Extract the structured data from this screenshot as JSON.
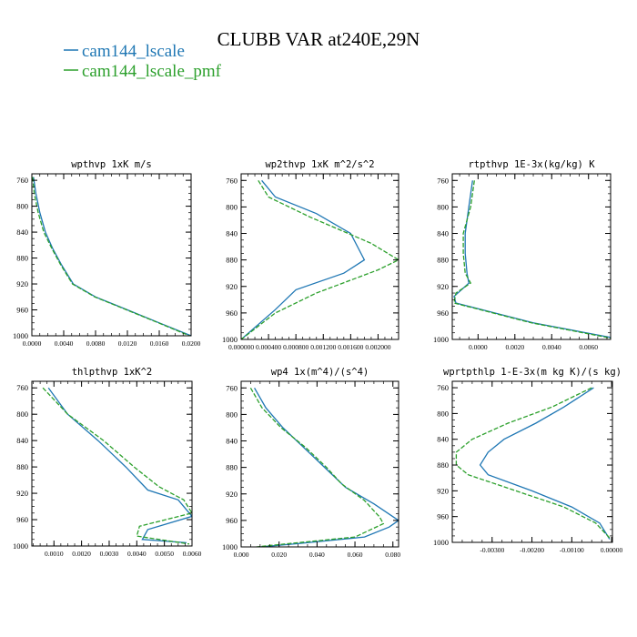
{
  "title": "CLUBB VAR at240E,29N",
  "legend": [
    {
      "name": "cam144_lscale",
      "color": "#1f77b4"
    },
    {
      "name": "cam144_lscale_pmf",
      "color": "#2ca02c"
    }
  ],
  "chart_data": [
    {
      "type": "line",
      "title": "wpthvp  1xK m/s",
      "xlim": [
        0,
        0.02
      ],
      "ylim": [
        1000,
        750
      ],
      "xticks": [
        "0.0000",
        "0.0040",
        "0.0080",
        "0.0120",
        "0.0160",
        "0.0200"
      ],
      "xtick_values": [
        0,
        0.004,
        0.008,
        0.012,
        0.016,
        0.02
      ],
      "yticks": [
        "760",
        "800",
        "840",
        "880",
        "920",
        "960",
        "1000"
      ],
      "ytick_values": [
        760,
        800,
        840,
        880,
        920,
        960,
        1000
      ],
      "series": [
        {
          "name": "cam144_lscale",
          "x": [
            0.0002,
            0.0005,
            0.001,
            0.0017,
            0.0026,
            0.0037,
            0.0052,
            0.008,
            0.012,
            0.016,
            0.02
          ],
          "y": [
            755,
            780,
            810,
            840,
            865,
            890,
            920,
            940,
            960,
            980,
            1000
          ]
        },
        {
          "name": "cam144_lscale_pmf",
          "x": [
            0.0001,
            0.0003,
            0.0008,
            0.0015,
            0.0025,
            0.0036,
            0.0051,
            0.0079,
            0.0119,
            0.0159,
            0.0198
          ],
          "y": [
            755,
            780,
            810,
            840,
            865,
            890,
            920,
            940,
            960,
            980,
            1000
          ]
        }
      ]
    },
    {
      "type": "line",
      "title": "wp2thvp  1xK m^2/s^2",
      "xlim": [
        0,
        0.0023
      ],
      "ylim": [
        1000,
        750
      ],
      "xticks": [
        "0.0000",
        "0.0004",
        "0.0008",
        "0.0012",
        "0.0016",
        "0.0020"
      ],
      "xtick_labels_drawn": [
        "0.000000",
        "0.000400",
        "0.000800",
        "0.001200",
        "0.001600",
        "0.002000"
      ],
      "xtick_values": [
        0,
        0.0004,
        0.0008,
        0.0012,
        0.0016,
        0.002
      ],
      "yticks": [
        "760",
        "800",
        "840",
        "880",
        "920",
        "960",
        "1000"
      ],
      "ytick_values": [
        760,
        800,
        840,
        880,
        920,
        960,
        1000
      ],
      "series": [
        {
          "name": "cam144_lscale",
          "x": [
            0.0003,
            0.0005,
            0.0011,
            0.0016,
            0.0018,
            0.0015,
            0.0008,
            0.0005,
            0.0
          ],
          "y": [
            760,
            785,
            810,
            840,
            880,
            900,
            925,
            955,
            1000
          ]
        },
        {
          "name": "cam144_lscale_pmf",
          "x": [
            0.00025,
            0.0004,
            0.001,
            0.0019,
            0.0023,
            0.002,
            0.0011,
            0.0005,
            0.0
          ],
          "y": [
            760,
            785,
            815,
            855,
            880,
            895,
            930,
            960,
            1000
          ]
        }
      ]
    },
    {
      "type": "line",
      "title": "rtpthvp  1E-3x(kg/kg) K",
      "xlim": [
        -0.0014,
        0.0072
      ],
      "ylim": [
        1000,
        750
      ],
      "xticks": [
        "0.0000",
        "0.0020",
        "0.0040",
        "0.0060"
      ],
      "xtick_values": [
        0,
        0.002,
        0.004,
        0.006
      ],
      "yticks": [
        "760",
        "800",
        "840",
        "880",
        "920",
        "960",
        "1000"
      ],
      "ytick_values": [
        760,
        800,
        840,
        880,
        920,
        960,
        1000
      ],
      "series": [
        {
          "name": "cam144_lscale",
          "x": [
            -0.0003,
            -0.0005,
            -0.0007,
            -0.0007,
            -0.0006,
            -0.0005,
            -0.0013,
            -0.0012,
            0.0002,
            0.003,
            0.0072
          ],
          "y": [
            760,
            800,
            840,
            870,
            900,
            915,
            935,
            945,
            955,
            975,
            997
          ]
        },
        {
          "name": "cam144_lscale_pmf",
          "x": [
            -0.0002,
            -0.0004,
            -0.0008,
            -0.0008,
            -0.0007,
            -0.0004,
            -0.0012,
            -0.0013,
            0.0001,
            0.0029,
            0.0072
          ],
          "y": [
            760,
            800,
            840,
            870,
            900,
            915,
            930,
            945,
            955,
            975,
            998
          ]
        }
      ]
    },
    {
      "type": "line",
      "title": "thlpthvp  1xK^2",
      "xlim": [
        0.0002,
        0.006
      ],
      "ylim": [
        1000,
        750
      ],
      "xticks": [
        "0.0010",
        "0.0020",
        "0.0030",
        "0.0040",
        "0.0050",
        "0.0060"
      ],
      "xtick_values": [
        0.001,
        0.002,
        0.003,
        0.004,
        0.005,
        0.006
      ],
      "yticks": [
        "760",
        "800",
        "840",
        "880",
        "920",
        "960",
        "1000"
      ],
      "ytick_values": [
        760,
        800,
        840,
        880,
        920,
        960,
        1000
      ],
      "series": [
        {
          "name": "cam144_lscale",
          "x": [
            0.0008,
            0.0015,
            0.0026,
            0.0036,
            0.0044,
            0.0055,
            0.006,
            0.0044,
            0.0042,
            0.0058
          ],
          "y": [
            760,
            800,
            840,
            880,
            915,
            930,
            955,
            975,
            990,
            995
          ]
        },
        {
          "name": "cam144_lscale_pmf",
          "x": [
            0.0006,
            0.0015,
            0.0028,
            0.0039,
            0.0048,
            0.0057,
            0.006,
            0.0041,
            0.004,
            0.0059
          ],
          "y": [
            760,
            800,
            840,
            880,
            910,
            930,
            950,
            970,
            985,
            997
          ]
        }
      ]
    },
    {
      "type": "line",
      "title": "wp4  1x(m^4)/(s^4)",
      "xlim": [
        0,
        0.083
      ],
      "ylim": [
        1000,
        750
      ],
      "xticks": [
        "0.000",
        "0.020",
        "0.040",
        "0.060",
        "0.080"
      ],
      "xtick_values": [
        0,
        0.02,
        0.04,
        0.06,
        0.08
      ],
      "yticks": [
        "760",
        "800",
        "840",
        "880",
        "920",
        "960",
        "1000"
      ],
      "ytick_values": [
        760,
        800,
        840,
        880,
        920,
        960,
        1000
      ],
      "series": [
        {
          "name": "cam144_lscale",
          "x": [
            0.007,
            0.013,
            0.022,
            0.033,
            0.044,
            0.055,
            0.07,
            0.083,
            0.078,
            0.065,
            0.03,
            0.01
          ],
          "y": [
            760,
            790,
            820,
            850,
            880,
            910,
            935,
            960,
            970,
            985,
            995,
            1000
          ]
        },
        {
          "name": "cam144_lscale_pmf",
          "x": [
            0.005,
            0.011,
            0.021,
            0.034,
            0.045,
            0.053,
            0.065,
            0.073,
            0.075,
            0.06,
            0.025,
            0.008
          ],
          "y": [
            760,
            790,
            820,
            850,
            880,
            905,
            930,
            955,
            965,
            985,
            995,
            1000
          ]
        }
      ]
    },
    {
      "type": "line",
      "title": "wprtpthlp  1-E-3x(m kg K)/(s kg)",
      "xlim": [
        -0.004,
        2e-05
      ],
      "ylim": [
        1000,
        750
      ],
      "xticks": [
        "-0.00300",
        "-0.00200",
        "-0.00100",
        "0.00000"
      ],
      "xtick_values": [
        -0.003,
        -0.002,
        -0.001,
        0
      ],
      "yticks": [
        "760",
        "800",
        "840",
        "880",
        "920",
        "960",
        "1000"
      ],
      "ytick_values": [
        760,
        800,
        840,
        880,
        920,
        960,
        1000
      ],
      "series": [
        {
          "name": "cam144_lscale",
          "x": [
            -0.00045,
            -0.0012,
            -0.0019,
            -0.0027,
            -0.0031,
            -0.0033,
            -0.0031,
            -0.002,
            -0.001,
            -0.0003,
            -5e-05
          ],
          "y": [
            760,
            790,
            815,
            840,
            860,
            880,
            895,
            920,
            945,
            970,
            995
          ]
        },
        {
          "name": "cam144_lscale_pmf",
          "x": [
            -0.0005,
            -0.0015,
            -0.0026,
            -0.0035,
            -0.0039,
            -0.0039,
            -0.0036,
            -0.0024,
            -0.0012,
            -0.0004,
            -2e-05
          ],
          "y": [
            760,
            790,
            815,
            840,
            860,
            880,
            895,
            920,
            945,
            970,
            995
          ]
        }
      ]
    }
  ]
}
